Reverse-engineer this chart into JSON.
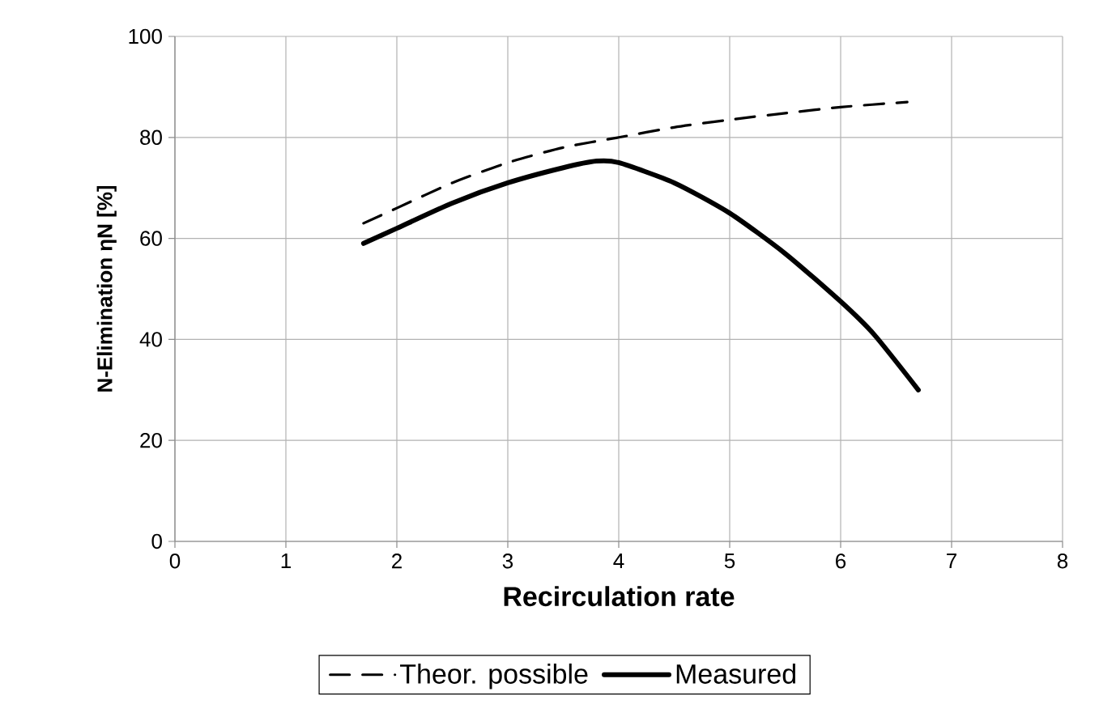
{
  "chart_data": {
    "type": "line",
    "xlabel": "Recirculation rate",
    "ylabel": "N-Elimination ηN [%]",
    "xlim": [
      0,
      8
    ],
    "xticks": [
      0,
      1,
      2,
      3,
      4,
      5,
      6,
      7,
      8
    ],
    "ylim": [
      0,
      100
    ],
    "yticks": [
      0,
      20,
      40,
      60,
      80,
      100
    ],
    "grid": true,
    "legend": "bottom",
    "series": [
      {
        "name": "Theor. possible",
        "color": "#000000",
        "line_style": "dashed",
        "x": [
          1.7,
          2,
          2.5,
          3,
          3.5,
          4,
          4.5,
          5,
          5.5,
          6,
          6.6
        ],
        "values": [
          63,
          66,
          71,
          75,
          78,
          80,
          82,
          83.5,
          84.8,
          86,
          87
        ]
      },
      {
        "name": "Measured",
        "color": "#000000",
        "line_style": "solid",
        "x": [
          1.7,
          2,
          2.5,
          3,
          3.5,
          3.8,
          4,
          4.5,
          5,
          5.5,
          6,
          6.3,
          6.7
        ],
        "values": [
          59,
          62,
          67,
          71,
          74,
          75.3,
          75,
          71,
          65,
          57,
          47.5,
          41,
          30
        ]
      }
    ]
  }
}
